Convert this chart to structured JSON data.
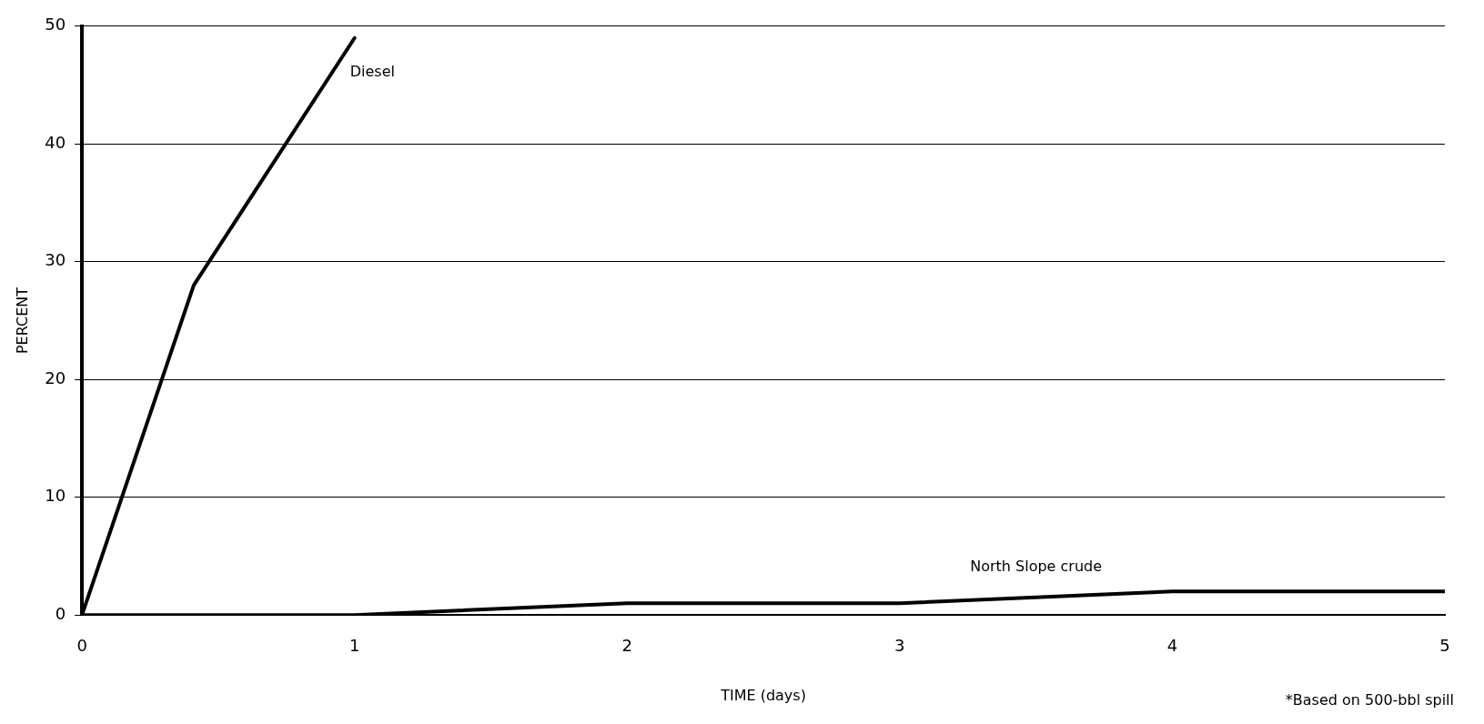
{
  "chart_data": {
    "type": "line",
    "xlabel": "TIME (days)",
    "ylabel": "PERCENT",
    "xlim": [
      0,
      5
    ],
    "xticks": [
      0,
      1,
      2,
      3,
      4,
      5
    ],
    "ylim": [
      0,
      50
    ],
    "yticks": [
      0,
      10,
      20,
      30,
      40,
      50
    ],
    "grid": "y",
    "legend": false,
    "marker": "none",
    "line_style": "solid",
    "series": [
      {
        "name": "Diesel",
        "color": "#000000",
        "x": [
          0,
          0.41,
          1
        ],
        "values": [
          0,
          28,
          49
        ]
      },
      {
        "name": "North Slope crude",
        "color": "#000000",
        "x": [
          0,
          1,
          2,
          3,
          4,
          5
        ],
        "values": [
          0,
          0,
          1,
          1,
          2,
          2
        ]
      }
    ],
    "annotations": [
      "*Based on 500-bbl spill"
    ]
  }
}
